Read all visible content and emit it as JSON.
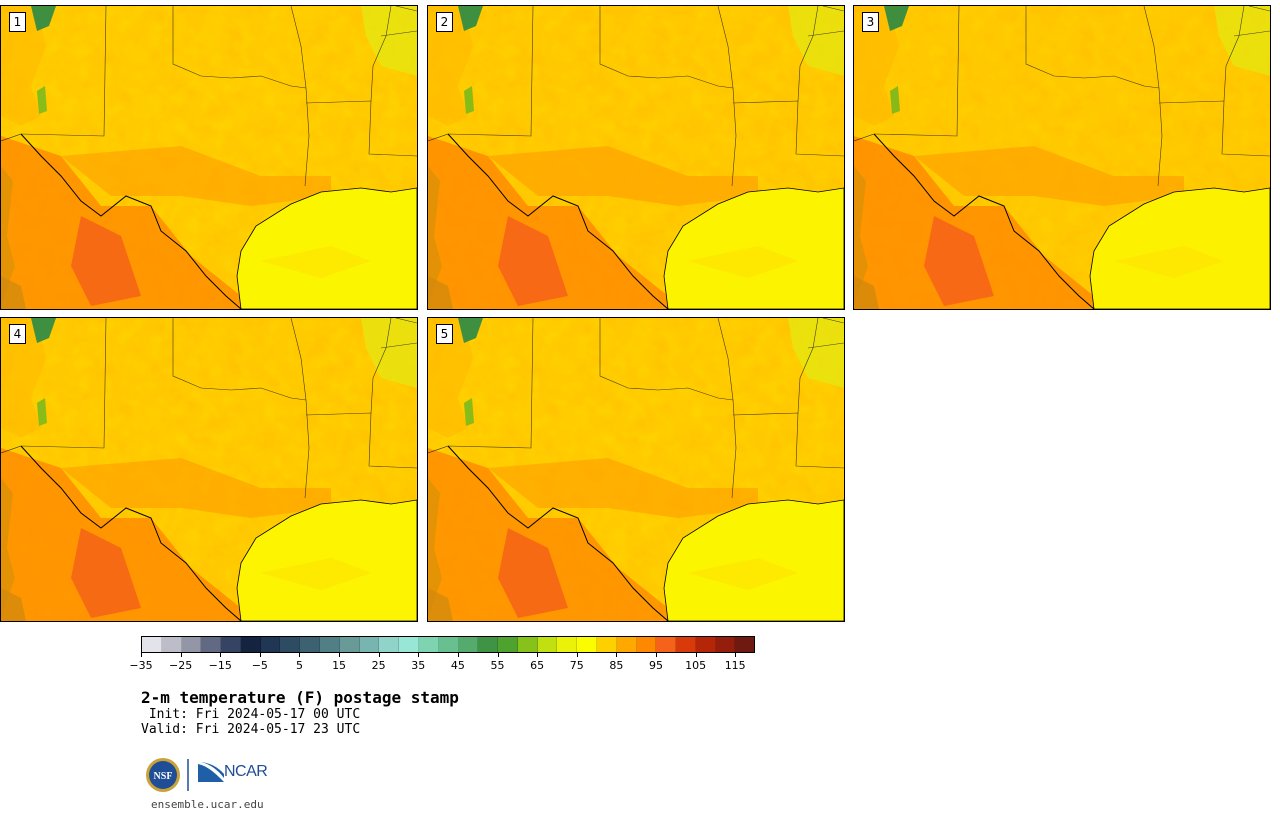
{
  "panels": [
    {
      "label": "1",
      "hot": 0.55
    },
    {
      "label": "2",
      "hot": 0.7
    },
    {
      "label": "3",
      "hot": 0.75
    },
    {
      "label": "4",
      "hot": 0.6
    },
    {
      "label": "5",
      "hot": 0.5
    }
  ],
  "colorbar": {
    "colors": [
      "#e2e4ea",
      "#bcbdc9",
      "#9396a7",
      "#626a83",
      "#364463",
      "#14233f",
      "#1f3655",
      "#2d4c64",
      "#3c6272",
      "#507f86",
      "#689a98",
      "#79b5b0",
      "#8fd3c9",
      "#97e6d6",
      "#7ed3b0",
      "#68bf8f",
      "#55ab6c",
      "#3e9444",
      "#50a22e",
      "#87c21a",
      "#c2df10",
      "#eaf20a",
      "#fcfc00",
      "#ffd000",
      "#ffa800",
      "#ff8800",
      "#f5621a",
      "#d83a0c",
      "#b52608",
      "#941d0c",
      "#6e1a10"
    ],
    "min": -35,
    "max": 120,
    "tick_values": [
      -35,
      -25,
      -15,
      -5,
      5,
      15,
      25,
      35,
      45,
      55,
      65,
      75,
      85,
      95,
      105,
      115
    ],
    "tick_labels": [
      "−35",
      "−25",
      "−15",
      "−5",
      "5",
      "15",
      "25",
      "35",
      "45",
      "55",
      "65",
      "75",
      "85",
      "95",
      "105",
      "115"
    ]
  },
  "title": "2-m temperature (F) postage stamp",
  "init": " Init: Fri 2024-05-17 00 UTC",
  "valid": "Valid: Fri 2024-05-17 23 UTC",
  "logos": {
    "nsf": "NSF",
    "ncar": "NCAR"
  },
  "website": "ensemble.ucar.edu"
}
